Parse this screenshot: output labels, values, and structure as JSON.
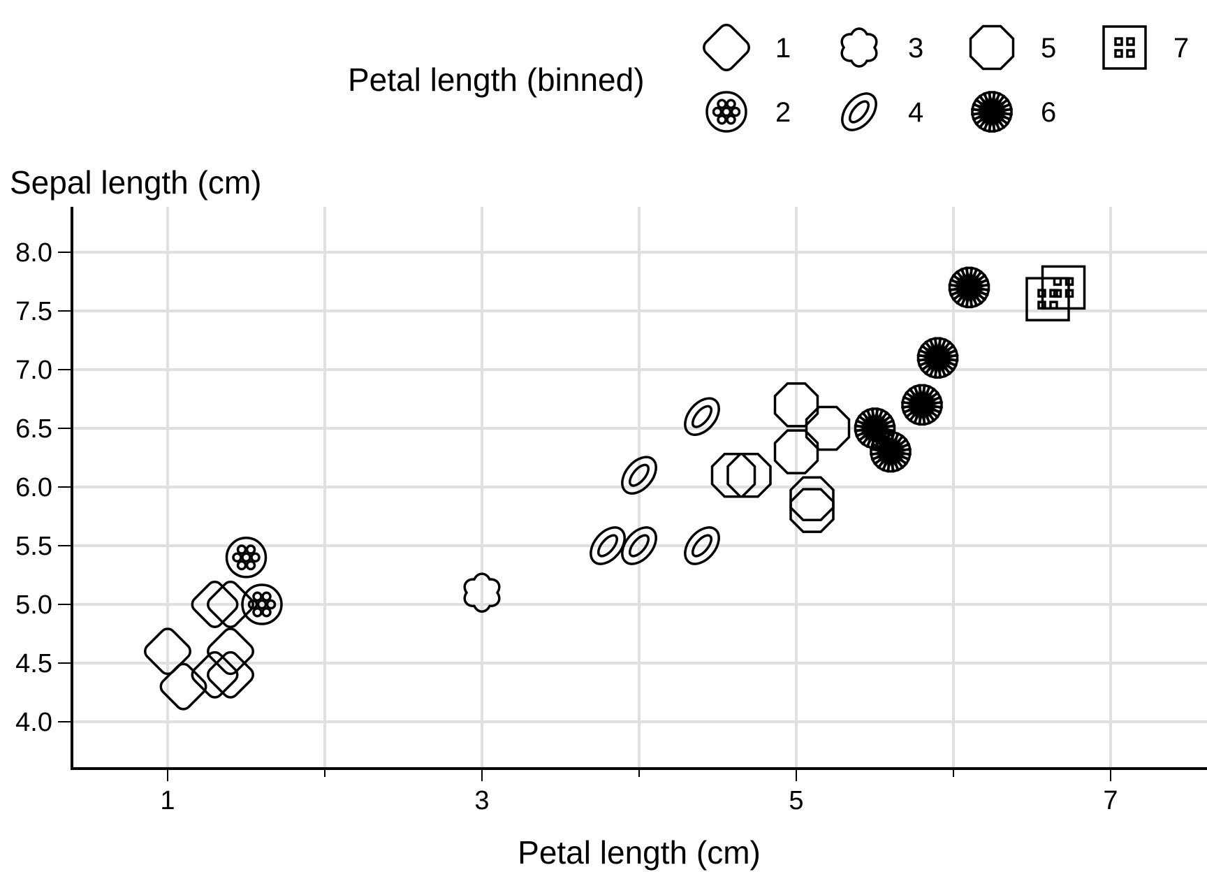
{
  "chart_data": {
    "type": "scatter",
    "xlabel": "Petal length (cm)",
    "ylabel": "Sepal length (cm)",
    "xlim": [
      0.3,
      7.6
    ],
    "ylim": [
      3.6,
      8.4
    ],
    "x_ticks": [
      1,
      3,
      5,
      7
    ],
    "x_minor_ticks": [
      2,
      4,
      6
    ],
    "y_ticks": [
      4.0,
      4.5,
      5.0,
      5.5,
      6.0,
      6.5,
      7.0,
      7.5,
      8.0
    ],
    "grid": true,
    "legend": {
      "title": "Petal length (binned)",
      "position": "top",
      "items": [
        {
          "label": "1",
          "shape": "rounded-diamond"
        },
        {
          "label": "2",
          "shape": "dotted-circle"
        },
        {
          "label": "3",
          "shape": "flower"
        },
        {
          "label": "4",
          "shape": "tilted-ellipse"
        },
        {
          "label": "5",
          "shape": "octagon"
        },
        {
          "label": "6",
          "shape": "asterisk"
        },
        {
          "label": "7",
          "shape": "square-grid"
        }
      ]
    },
    "points": [
      {
        "x": 1.0,
        "y": 4.6,
        "bin": 1
      },
      {
        "x": 1.1,
        "y": 4.3,
        "bin": 1
      },
      {
        "x": 1.3,
        "y": 4.4,
        "bin": 1
      },
      {
        "x": 1.4,
        "y": 4.4,
        "bin": 1
      },
      {
        "x": 1.4,
        "y": 4.6,
        "bin": 1
      },
      {
        "x": 1.3,
        "y": 5.0,
        "bin": 1
      },
      {
        "x": 1.4,
        "y": 5.0,
        "bin": 1
      },
      {
        "x": 1.5,
        "y": 5.4,
        "bin": 2
      },
      {
        "x": 1.6,
        "y": 5.0,
        "bin": 2
      },
      {
        "x": 3.0,
        "y": 5.1,
        "bin": 3
      },
      {
        "x": 3.8,
        "y": 5.5,
        "bin": 4
      },
      {
        "x": 4.0,
        "y": 5.5,
        "bin": 4
      },
      {
        "x": 4.4,
        "y": 5.5,
        "bin": 4
      },
      {
        "x": 4.0,
        "y": 6.1,
        "bin": 4
      },
      {
        "x": 4.4,
        "y": 6.6,
        "bin": 4
      },
      {
        "x": 4.6,
        "y": 6.1,
        "bin": 5
      },
      {
        "x": 4.7,
        "y": 6.1,
        "bin": 5
      },
      {
        "x": 5.0,
        "y": 6.3,
        "bin": 5
      },
      {
        "x": 5.0,
        "y": 6.7,
        "bin": 5
      },
      {
        "x": 5.2,
        "y": 6.5,
        "bin": 5
      },
      {
        "x": 5.1,
        "y": 5.8,
        "bin": 5
      },
      {
        "x": 5.1,
        "y": 5.9,
        "bin": 5
      },
      {
        "x": 5.5,
        "y": 6.5,
        "bin": 6
      },
      {
        "x": 5.6,
        "y": 6.3,
        "bin": 6
      },
      {
        "x": 5.8,
        "y": 6.7,
        "bin": 6
      },
      {
        "x": 5.9,
        "y": 7.1,
        "bin": 6
      },
      {
        "x": 6.1,
        "y": 7.7,
        "bin": 6
      },
      {
        "x": 6.7,
        "y": 7.7,
        "bin": 7
      },
      {
        "x": 6.6,
        "y": 7.6,
        "bin": 7
      }
    ]
  }
}
